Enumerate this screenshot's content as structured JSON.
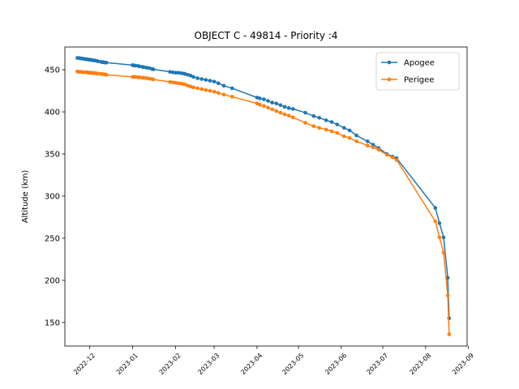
{
  "chart_data": {
    "type": "line",
    "title": "OBJECT C - 49814 - Priority :4",
    "xlabel": "",
    "ylabel": "Altitude (km)",
    "ylim": [
      122,
      477
    ],
    "xlim": [
      "2022-11-13",
      "2023-08-31"
    ],
    "yticks": [
      150,
      200,
      250,
      300,
      350,
      400,
      450
    ],
    "xticks": [
      "2022-12-01",
      "2023-01-01",
      "2023-02-01",
      "2023-03-01",
      "2023-04-01",
      "2023-05-01",
      "2023-06-01",
      "2023-07-01",
      "2023-08-01",
      "2023-09-01"
    ],
    "xtick_labels": [
      "2022-12",
      "2023-01",
      "2023-02",
      "2023-03",
      "2023-04",
      "2023-05",
      "2023-06",
      "2023-07",
      "2023-08",
      "2023-09"
    ],
    "grid": false,
    "legend_position": "upper-right",
    "series": [
      {
        "name": "Apogee",
        "color": "#1f77b4",
        "points": [
          [
            "2022-11-22",
            464
          ],
          [
            "2022-11-23",
            464
          ],
          [
            "2022-11-24",
            463.5
          ],
          [
            "2022-11-25",
            463.5
          ],
          [
            "2022-11-26",
            463
          ],
          [
            "2022-11-27",
            463
          ],
          [
            "2022-11-28",
            462.5
          ],
          [
            "2022-11-29",
            462.5
          ],
          [
            "2022-11-30",
            462
          ],
          [
            "2022-12-01",
            462
          ],
          [
            "2022-12-02",
            461.5
          ],
          [
            "2022-12-03",
            461.5
          ],
          [
            "2022-12-04",
            461
          ],
          [
            "2022-12-05",
            461
          ],
          [
            "2022-12-06",
            460.5
          ],
          [
            "2022-12-07",
            460
          ],
          [
            "2022-12-09",
            459.5
          ],
          [
            "2022-12-10",
            459
          ],
          [
            "2022-12-11",
            459
          ],
          [
            "2022-12-12",
            458.5
          ],
          [
            "2022-12-13",
            458.5
          ],
          [
            "2023-01-01",
            455.5
          ],
          [
            "2023-01-02",
            455
          ],
          [
            "2023-01-03",
            455
          ],
          [
            "2023-01-05",
            454.5
          ],
          [
            "2023-01-06",
            454
          ],
          [
            "2023-01-08",
            453.5
          ],
          [
            "2023-01-09",
            453
          ],
          [
            "2023-01-11",
            452.5
          ],
          [
            "2023-01-13",
            452
          ],
          [
            "2023-01-15",
            451
          ],
          [
            "2023-01-16",
            450.5
          ],
          [
            "2023-01-28",
            447.5
          ],
          [
            "2023-01-30",
            447
          ],
          [
            "2023-02-01",
            446.5
          ],
          [
            "2023-02-03",
            446.5
          ],
          [
            "2023-02-05",
            446
          ],
          [
            "2023-02-07",
            445.5
          ],
          [
            "2023-02-08",
            445
          ],
          [
            "2023-02-10",
            444
          ],
          [
            "2023-02-12",
            443
          ],
          [
            "2023-02-14",
            441.5
          ],
          [
            "2023-02-17",
            440
          ],
          [
            "2023-02-20",
            439
          ],
          [
            "2023-02-23",
            438
          ],
          [
            "2023-02-26",
            437
          ],
          [
            "2023-03-01",
            436
          ],
          [
            "2023-03-04",
            434
          ],
          [
            "2023-03-08",
            431
          ],
          [
            "2023-03-14",
            428
          ],
          [
            "2023-04-01",
            417
          ],
          [
            "2023-04-03",
            416
          ],
          [
            "2023-04-06",
            415
          ],
          [
            "2023-04-09",
            413
          ],
          [
            "2023-04-12",
            411
          ],
          [
            "2023-04-15",
            410
          ],
          [
            "2023-04-18",
            408
          ],
          [
            "2023-04-21",
            406
          ],
          [
            "2023-04-24",
            404.5
          ],
          [
            "2023-04-27",
            403.5
          ],
          [
            "2023-05-06",
            399
          ],
          [
            "2023-05-12",
            395
          ],
          [
            "2023-05-16",
            393
          ],
          [
            "2023-05-21",
            390
          ],
          [
            "2023-05-25",
            388
          ],
          [
            "2023-05-29",
            385
          ],
          [
            "2023-06-03",
            381
          ],
          [
            "2023-06-07",
            378
          ],
          [
            "2023-06-12",
            372
          ],
          [
            "2023-06-20",
            365
          ],
          [
            "2023-06-24",
            361
          ],
          [
            "2023-06-28",
            357
          ],
          [
            "2023-07-04",
            350
          ],
          [
            "2023-07-08",
            347
          ],
          [
            "2023-07-11",
            345
          ],
          [
            "2023-08-08",
            286
          ],
          [
            "2023-08-11",
            268
          ],
          [
            "2023-08-14",
            251
          ],
          [
            "2023-08-17",
            203
          ],
          [
            "2023-08-18",
            155
          ]
        ]
      },
      {
        "name": "Perigee",
        "color": "#ff7f0e",
        "points": [
          [
            "2022-11-22",
            448
          ],
          [
            "2022-11-23",
            447.5
          ],
          [
            "2022-11-24",
            447.5
          ],
          [
            "2022-11-25",
            447.5
          ],
          [
            "2022-11-26",
            447
          ],
          [
            "2022-11-27",
            447
          ],
          [
            "2022-11-28",
            447
          ],
          [
            "2022-11-29",
            447
          ],
          [
            "2022-11-30",
            446.5
          ],
          [
            "2022-12-01",
            446.5
          ],
          [
            "2022-12-02",
            446.5
          ],
          [
            "2022-12-03",
            446
          ],
          [
            "2022-12-04",
            446
          ],
          [
            "2022-12-05",
            446
          ],
          [
            "2022-12-06",
            445.5
          ],
          [
            "2022-12-07",
            445.5
          ],
          [
            "2022-12-09",
            445
          ],
          [
            "2022-12-10",
            445
          ],
          [
            "2022-12-11",
            444.5
          ],
          [
            "2022-12-12",
            444.5
          ],
          [
            "2022-12-13",
            444
          ],
          [
            "2023-01-01",
            441.5
          ],
          [
            "2023-01-02",
            441.5
          ],
          [
            "2023-01-03",
            441.5
          ],
          [
            "2023-01-05",
            441
          ],
          [
            "2023-01-06",
            441
          ],
          [
            "2023-01-08",
            440.5
          ],
          [
            "2023-01-09",
            440.5
          ],
          [
            "2023-01-11",
            440
          ],
          [
            "2023-01-13",
            439.5
          ],
          [
            "2023-01-15",
            439
          ],
          [
            "2023-01-16",
            438.5
          ],
          [
            "2023-01-28",
            435.5
          ],
          [
            "2023-01-30",
            435
          ],
          [
            "2023-02-01",
            434.5
          ],
          [
            "2023-02-03",
            434
          ],
          [
            "2023-02-05",
            433.5
          ],
          [
            "2023-02-07",
            433
          ],
          [
            "2023-02-08",
            432.5
          ],
          [
            "2023-02-10",
            431
          ],
          [
            "2023-02-12",
            430
          ],
          [
            "2023-02-14",
            429
          ],
          [
            "2023-02-17",
            428
          ],
          [
            "2023-02-20",
            427
          ],
          [
            "2023-02-23",
            426
          ],
          [
            "2023-02-26",
            425
          ],
          [
            "2023-03-01",
            424
          ],
          [
            "2023-03-04",
            422.5
          ],
          [
            "2023-03-08",
            420.5
          ],
          [
            "2023-03-14",
            418
          ],
          [
            "2023-04-01",
            410
          ],
          [
            "2023-04-03",
            408.5
          ],
          [
            "2023-04-06",
            407
          ],
          [
            "2023-04-09",
            405
          ],
          [
            "2023-04-12",
            403
          ],
          [
            "2023-04-15",
            401
          ],
          [
            "2023-04-18",
            399
          ],
          [
            "2023-04-21",
            397
          ],
          [
            "2023-04-24",
            395.5
          ],
          [
            "2023-04-27",
            393.5
          ],
          [
            "2023-05-06",
            387
          ],
          [
            "2023-05-12",
            383
          ],
          [
            "2023-05-16",
            381
          ],
          [
            "2023-05-21",
            379
          ],
          [
            "2023-05-25",
            377
          ],
          [
            "2023-05-29",
            375
          ],
          [
            "2023-06-03",
            371
          ],
          [
            "2023-06-07",
            369
          ],
          [
            "2023-06-12",
            365
          ],
          [
            "2023-06-20",
            360
          ],
          [
            "2023-06-24",
            358
          ],
          [
            "2023-06-28",
            355
          ],
          [
            "2023-07-04",
            349
          ],
          [
            "2023-07-08",
            346
          ],
          [
            "2023-07-11",
            343
          ],
          [
            "2023-08-08",
            270
          ],
          [
            "2023-08-11",
            251
          ],
          [
            "2023-08-14",
            233
          ],
          [
            "2023-08-17",
            182
          ],
          [
            "2023-08-18",
            136
          ]
        ]
      }
    ]
  }
}
